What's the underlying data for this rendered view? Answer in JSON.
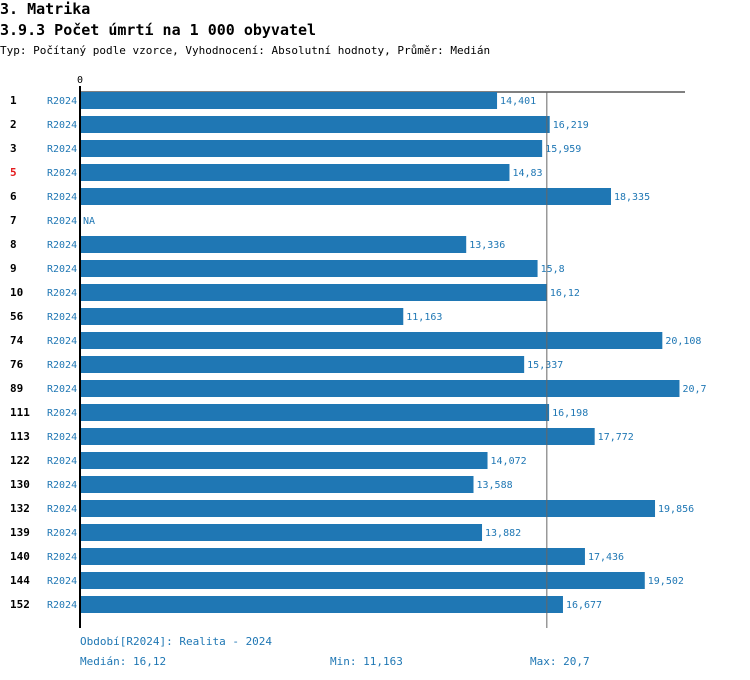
{
  "header": {
    "section": "3. Matrika",
    "title": "3.9.3 Počet úmrtí na 1 000 obyvatel",
    "subtitle": "Typ: Počítaný podle vzorce, Vyhodnocení: Absolutní hodnoty, Průměr: Medián"
  },
  "chart_data": {
    "type": "bar",
    "orientation": "horizontal",
    "title": "3.9.3 Počet úmrtí na 1 000 obyvatel",
    "axis_zero_label": "0",
    "xlim": [
      0,
      20.9
    ],
    "median": 16.12,
    "categories": [
      "1",
      "2",
      "3",
      "5",
      "6",
      "7",
      "8",
      "9",
      "10",
      "56",
      "74",
      "76",
      "89",
      "111",
      "113",
      "122",
      "130",
      "132",
      "139",
      "140",
      "144",
      "152"
    ],
    "highlighted": [
      "5"
    ],
    "period": "R2024",
    "values": [
      14.401,
      16.219,
      15.959,
      14.83,
      18.335,
      null,
      13.336,
      15.8,
      16.12,
      11.163,
      20.108,
      15.337,
      20.7,
      16.198,
      17.772,
      14.072,
      13.588,
      19.856,
      13.882,
      17.436,
      19.502,
      16.677
    ],
    "value_labels": [
      "14,401",
      "16,219",
      "15,959",
      "14,83",
      "18,335",
      "NA",
      "13,336",
      "15,8",
      "16,12",
      "11,163",
      "20,108",
      "15,337",
      "20,7",
      "16,198",
      "17,772",
      "14,072",
      "13,588",
      "19,856",
      "13,882",
      "17,436",
      "19,502",
      "16,677"
    ]
  },
  "colors": {
    "bar": "#1f77b4",
    "text": "#1f77b4",
    "highlight": "#e41a1c"
  },
  "footer": {
    "period": "Období[R2024]: Realita - 2024",
    "median": "Medián: 16,12",
    "min": "Min: 11,163",
    "max": "Max: 20,7"
  }
}
